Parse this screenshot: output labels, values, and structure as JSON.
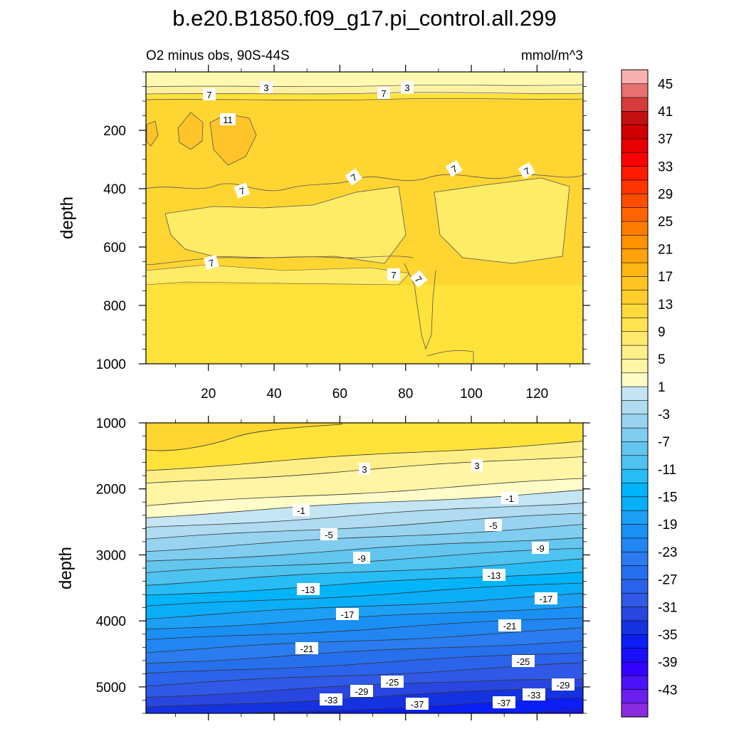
{
  "chart_data": {
    "type": "contour",
    "title": "b.e20.B1850.f09_g17.pi_control.all.299",
    "subtitle_left": "O2 minus obs, 90S-44S",
    "subtitle_right": "mmol/m^3",
    "colorbar": {
      "levels": [
        -45,
        -43,
        -41,
        -39,
        -37,
        -35,
        -33,
        -31,
        -29,
        -27,
        -25,
        -23,
        -21,
        -19,
        -17,
        -15,
        -13,
        -11,
        -9,
        -7,
        -5,
        -3,
        -1,
        1,
        3,
        5,
        7,
        9,
        11,
        13,
        15,
        17,
        19,
        21,
        23,
        25,
        27,
        29,
        31,
        33,
        35,
        37,
        39,
        41,
        43,
        45
      ],
      "labels": [
        "45",
        "41",
        "37",
        "33",
        "29",
        "25",
        "21",
        "17",
        "13",
        "9",
        "5",
        "1",
        "-3",
        "-7",
        "-11",
        "-15",
        "-19",
        "-23",
        "-27",
        "-31",
        "-35",
        "-39",
        "-43"
      ],
      "colors": [
        "#8a2be2",
        "#6a1ef0",
        "#4b12fa",
        "#3300ff",
        "#1a0fff",
        "#0a1ef5",
        "#1432e0",
        "#2a46e0",
        "#2f59e6",
        "#2b63ea",
        "#2670ee",
        "#2b7cf0",
        "#2186f2",
        "#1a90f5",
        "#1ba0f6",
        "#0aaef7",
        "#00b4fa",
        "#27bcf6",
        "#4ec3f0",
        "#62c6ef",
        "#80cdf0",
        "#98d4f0",
        "#b0dbf0",
        "#c4e5f4",
        "#fffcc8",
        "#fff5a5",
        "#ffef88",
        "#ffea6e",
        "#ffe350",
        "#ffda3c",
        "#ffce2c",
        "#ffc41f",
        "#ffb514",
        "#ffa30a",
        "#ff9200",
        "#ff7c00",
        "#ff6400",
        "#ff4d00",
        "#ff3500",
        "#ff1a00",
        "#ff0000",
        "#e60000",
        "#d00000",
        "#c21010",
        "#d63c3c",
        "#e87070",
        "#f8b0b0"
      ]
    },
    "panels": [
      {
        "name": "upper",
        "ylabel": "depth",
        "ylim": [
          0,
          1000
        ],
        "yticks": [
          "200",
          "400",
          "600",
          "800",
          "1000"
        ],
        "xlim": [
          1,
          134
        ],
        "xticks": [
          "20",
          "40",
          "60",
          "80",
          "100",
          "120"
        ],
        "contour_labels": [
          "7",
          "3",
          "7",
          "3",
          "11",
          "7",
          "7",
          "7",
          "7",
          "7",
          "7",
          "7"
        ]
      },
      {
        "name": "lower",
        "ylabel": "depth",
        "ylim": [
          1000,
          5400
        ],
        "yticks": [
          "1000",
          "2000",
          "3000",
          "4000",
          "5000"
        ],
        "contour_labels": [
          "3",
          "3",
          "-1",
          "-1",
          "-5",
          "-5",
          "-9",
          "-9",
          "-13",
          "-13",
          "-17",
          "-17",
          "-21",
          "-21",
          "-25",
          "-25",
          "-29",
          "-29",
          "-33",
          "-33",
          "-37",
          "-37"
        ]
      }
    ]
  }
}
